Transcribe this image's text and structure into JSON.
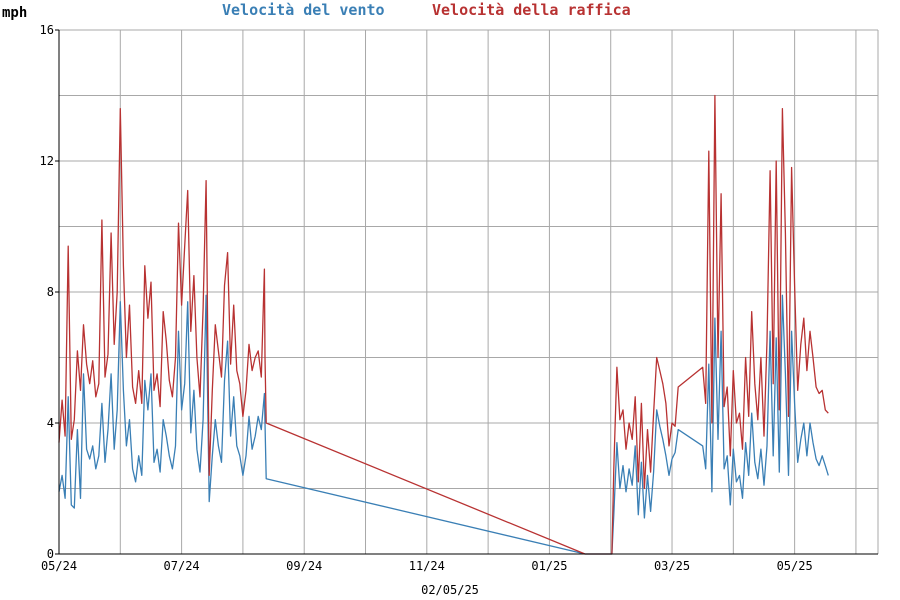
{
  "chart_data": {
    "type": "line",
    "ylabel": "mph",
    "ylim": [
      0,
      16
    ],
    "yticks": [
      0,
      4,
      8,
      12,
      16
    ],
    "xticks": [
      "05/24",
      "07/24",
      "09/24",
      "11/24",
      "01/25",
      "03/25",
      "05/25"
    ],
    "date_label": "02/05/25",
    "grid": true,
    "legend_position": "top",
    "x_unit": "months since 05/24",
    "series": [
      {
        "name": "Velocità del vento",
        "color": "#3a7fb5",
        "points": [
          [
            0.0,
            1.9
          ],
          [
            0.05,
            2.4
          ],
          [
            0.1,
            1.7
          ],
          [
            0.15,
            4.8
          ],
          [
            0.2,
            1.5
          ],
          [
            0.25,
            1.4
          ],
          [
            0.3,
            3.8
          ],
          [
            0.35,
            1.7
          ],
          [
            0.4,
            5.5
          ],
          [
            0.45,
            3.2
          ],
          [
            0.5,
            2.9
          ],
          [
            0.55,
            3.3
          ],
          [
            0.6,
            2.6
          ],
          [
            0.65,
            3.0
          ],
          [
            0.7,
            4.6
          ],
          [
            0.75,
            2.8
          ],
          [
            0.8,
            3.8
          ],
          [
            0.85,
            5.5
          ],
          [
            0.9,
            3.2
          ],
          [
            0.95,
            4.4
          ],
          [
            1.0,
            7.7
          ],
          [
            1.05,
            5.0
          ],
          [
            1.1,
            3.3
          ],
          [
            1.15,
            4.1
          ],
          [
            1.2,
            2.6
          ],
          [
            1.25,
            2.2
          ],
          [
            1.3,
            3.0
          ],
          [
            1.35,
            2.4
          ],
          [
            1.4,
            5.3
          ],
          [
            1.45,
            4.4
          ],
          [
            1.5,
            5.5
          ],
          [
            1.55,
            2.8
          ],
          [
            1.6,
            3.2
          ],
          [
            1.65,
            2.5
          ],
          [
            1.7,
            4.1
          ],
          [
            1.75,
            3.6
          ],
          [
            1.8,
            3.0
          ],
          [
            1.85,
            2.6
          ],
          [
            1.9,
            3.3
          ],
          [
            1.95,
            6.8
          ],
          [
            2.0,
            4.4
          ],
          [
            2.05,
            5.2
          ],
          [
            2.1,
            7.7
          ],
          [
            2.15,
            3.7
          ],
          [
            2.2,
            5.0
          ],
          [
            2.25,
            3.2
          ],
          [
            2.3,
            2.5
          ],
          [
            2.35,
            4.1
          ],
          [
            2.4,
            7.9
          ],
          [
            2.45,
            1.6
          ],
          [
            2.5,
            3.0
          ],
          [
            2.55,
            4.1
          ],
          [
            2.6,
            3.3
          ],
          [
            2.65,
            2.8
          ],
          [
            2.7,
            5.3
          ],
          [
            2.75,
            6.5
          ],
          [
            2.8,
            3.6
          ],
          [
            2.85,
            4.8
          ],
          [
            2.9,
            3.3
          ],
          [
            2.95,
            3.0
          ],
          [
            3.0,
            2.4
          ],
          [
            3.05,
            3.0
          ],
          [
            3.1,
            4.2
          ],
          [
            3.15,
            3.2
          ],
          [
            3.2,
            3.6
          ],
          [
            3.25,
            4.2
          ],
          [
            3.3,
            3.8
          ],
          [
            3.35,
            4.9
          ],
          [
            3.36,
            4.0
          ],
          [
            3.38,
            2.3
          ],
          [
            8.58,
            0.0
          ],
          [
            9.02,
            0.0
          ],
          [
            9.05,
            1.2
          ],
          [
            9.1,
            3.4
          ],
          [
            9.15,
            2.0
          ],
          [
            9.2,
            2.7
          ],
          [
            9.25,
            1.9
          ],
          [
            9.3,
            2.6
          ],
          [
            9.35,
            2.1
          ],
          [
            9.4,
            3.3
          ],
          [
            9.45,
            1.2
          ],
          [
            9.5,
            2.8
          ],
          [
            9.55,
            1.1
          ],
          [
            9.6,
            2.4
          ],
          [
            9.65,
            1.3
          ],
          [
            9.7,
            2.5
          ],
          [
            9.75,
            4.4
          ],
          [
            9.8,
            3.9
          ],
          [
            9.85,
            3.5
          ],
          [
            9.9,
            3.0
          ],
          [
            9.95,
            2.4
          ],
          [
            10.0,
            2.9
          ],
          [
            10.05,
            3.1
          ],
          [
            10.1,
            3.8
          ],
          [
            10.5,
            3.3
          ],
          [
            10.55,
            2.6
          ],
          [
            10.6,
            5.8
          ],
          [
            10.65,
            1.9
          ],
          [
            10.7,
            7.2
          ],
          [
            10.75,
            3.5
          ],
          [
            10.8,
            6.8
          ],
          [
            10.85,
            2.6
          ],
          [
            10.9,
            3.0
          ],
          [
            10.95,
            1.5
          ],
          [
            11.0,
            3.2
          ],
          [
            11.05,
            2.2
          ],
          [
            11.1,
            2.4
          ],
          [
            11.15,
            1.7
          ],
          [
            11.2,
            3.4
          ],
          [
            11.25,
            2.4
          ],
          [
            11.3,
            4.3
          ],
          [
            11.35,
            2.8
          ],
          [
            11.4,
            2.3
          ],
          [
            11.45,
            3.2
          ],
          [
            11.5,
            2.1
          ],
          [
            11.55,
            3.3
          ],
          [
            11.6,
            6.8
          ],
          [
            11.65,
            3.0
          ],
          [
            11.7,
            6.6
          ],
          [
            11.75,
            2.5
          ],
          [
            11.8,
            7.9
          ],
          [
            11.85,
            5.5
          ],
          [
            11.9,
            2.4
          ],
          [
            11.95,
            6.8
          ],
          [
            12.0,
            4.6
          ],
          [
            12.05,
            2.8
          ],
          [
            12.1,
            3.5
          ],
          [
            12.15,
            4.0
          ],
          [
            12.2,
            3.0
          ],
          [
            12.25,
            4.0
          ],
          [
            12.3,
            3.4
          ],
          [
            12.35,
            2.9
          ],
          [
            12.4,
            2.7
          ],
          [
            12.45,
            3.0
          ],
          [
            12.5,
            2.7
          ],
          [
            12.55,
            2.4
          ]
        ]
      },
      {
        "name": "Velocità della raffica",
        "color": "#b83232",
        "points": [
          [
            0.0,
            3.4
          ],
          [
            0.05,
            4.7
          ],
          [
            0.1,
            3.6
          ],
          [
            0.15,
            9.4
          ],
          [
            0.2,
            3.5
          ],
          [
            0.25,
            4.1
          ],
          [
            0.3,
            6.2
          ],
          [
            0.35,
            5.0
          ],
          [
            0.4,
            7.0
          ],
          [
            0.45,
            5.8
          ],
          [
            0.5,
            5.2
          ],
          [
            0.55,
            5.9
          ],
          [
            0.6,
            4.8
          ],
          [
            0.65,
            5.2
          ],
          [
            0.7,
            10.2
          ],
          [
            0.75,
            5.4
          ],
          [
            0.8,
            6.1
          ],
          [
            0.85,
            9.8
          ],
          [
            0.9,
            6.4
          ],
          [
            0.95,
            8.0
          ],
          [
            1.0,
            13.6
          ],
          [
            1.05,
            8.8
          ],
          [
            1.1,
            6.0
          ],
          [
            1.15,
            7.6
          ],
          [
            1.2,
            5.1
          ],
          [
            1.25,
            4.6
          ],
          [
            1.3,
            5.6
          ],
          [
            1.35,
            4.6
          ],
          [
            1.4,
            8.8
          ],
          [
            1.45,
            7.2
          ],
          [
            1.5,
            8.3
          ],
          [
            1.55,
            5.0
          ],
          [
            1.6,
            5.5
          ],
          [
            1.65,
            4.5
          ],
          [
            1.7,
            7.4
          ],
          [
            1.75,
            6.5
          ],
          [
            1.8,
            5.3
          ],
          [
            1.85,
            4.8
          ],
          [
            1.9,
            6.0
          ],
          [
            1.95,
            10.1
          ],
          [
            2.0,
            7.6
          ],
          [
            2.05,
            9.4
          ],
          [
            2.1,
            11.1
          ],
          [
            2.15,
            6.8
          ],
          [
            2.2,
            8.5
          ],
          [
            2.25,
            6.0
          ],
          [
            2.3,
            4.8
          ],
          [
            2.35,
            7.5
          ],
          [
            2.4,
            11.4
          ],
          [
            2.45,
            2.4
          ],
          [
            2.5,
            5.0
          ],
          [
            2.55,
            7.0
          ],
          [
            2.6,
            6.2
          ],
          [
            2.65,
            5.4
          ],
          [
            2.7,
            8.2
          ],
          [
            2.75,
            9.2
          ],
          [
            2.8,
            5.8
          ],
          [
            2.85,
            7.6
          ],
          [
            2.9,
            5.6
          ],
          [
            2.95,
            5.2
          ],
          [
            3.0,
            4.2
          ],
          [
            3.05,
            5.0
          ],
          [
            3.1,
            6.4
          ],
          [
            3.15,
            5.6
          ],
          [
            3.2,
            6.0
          ],
          [
            3.25,
            6.2
          ],
          [
            3.3,
            5.4
          ],
          [
            3.35,
            8.7
          ],
          [
            3.36,
            6.0
          ],
          [
            3.38,
            4.0
          ],
          [
            8.58,
            0.0
          ],
          [
            9.02,
            0.0
          ],
          [
            9.05,
            2.6
          ],
          [
            9.1,
            5.7
          ],
          [
            9.15,
            4.1
          ],
          [
            9.2,
            4.4
          ],
          [
            9.25,
            3.2
          ],
          [
            9.3,
            4.0
          ],
          [
            9.35,
            3.5
          ],
          [
            9.4,
            4.8
          ],
          [
            9.45,
            2.2
          ],
          [
            9.5,
            4.6
          ],
          [
            9.55,
            2.0
          ],
          [
            9.6,
            3.8
          ],
          [
            9.65,
            2.5
          ],
          [
            9.7,
            4.3
          ],
          [
            9.75,
            6.0
          ],
          [
            9.8,
            5.6
          ],
          [
            9.85,
            5.2
          ],
          [
            9.9,
            4.6
          ],
          [
            9.95,
            3.3
          ],
          [
            10.0,
            4.0
          ],
          [
            10.05,
            3.9
          ],
          [
            10.1,
            5.1
          ],
          [
            10.5,
            5.7
          ],
          [
            10.55,
            4.6
          ],
          [
            10.6,
            12.3
          ],
          [
            10.65,
            4.0
          ],
          [
            10.7,
            14.0
          ],
          [
            10.75,
            6.0
          ],
          [
            10.8,
            11.0
          ],
          [
            10.85,
            4.5
          ],
          [
            10.9,
            5.1
          ],
          [
            10.95,
            3.0
          ],
          [
            11.0,
            5.6
          ],
          [
            11.05,
            4.0
          ],
          [
            11.1,
            4.3
          ],
          [
            11.15,
            3.2
          ],
          [
            11.2,
            6.0
          ],
          [
            11.25,
            4.2
          ],
          [
            11.3,
            7.4
          ],
          [
            11.35,
            5.2
          ],
          [
            11.4,
            4.1
          ],
          [
            11.45,
            6.0
          ],
          [
            11.5,
            3.6
          ],
          [
            11.55,
            6.5
          ],
          [
            11.6,
            11.7
          ],
          [
            11.65,
            5.2
          ],
          [
            11.7,
            12.0
          ],
          [
            11.75,
            4.4
          ],
          [
            11.8,
            13.6
          ],
          [
            11.85,
            9.8
          ],
          [
            11.9,
            4.2
          ],
          [
            11.95,
            11.8
          ],
          [
            12.0,
            8.2
          ],
          [
            12.05,
            5.0
          ],
          [
            12.1,
            6.4
          ],
          [
            12.15,
            7.2
          ],
          [
            12.2,
            5.6
          ],
          [
            12.25,
            6.8
          ],
          [
            12.3,
            6.0
          ],
          [
            12.35,
            5.1
          ],
          [
            12.4,
            4.9
          ],
          [
            12.45,
            5.0
          ],
          [
            12.5,
            4.4
          ],
          [
            12.55,
            4.3
          ]
        ]
      }
    ]
  }
}
